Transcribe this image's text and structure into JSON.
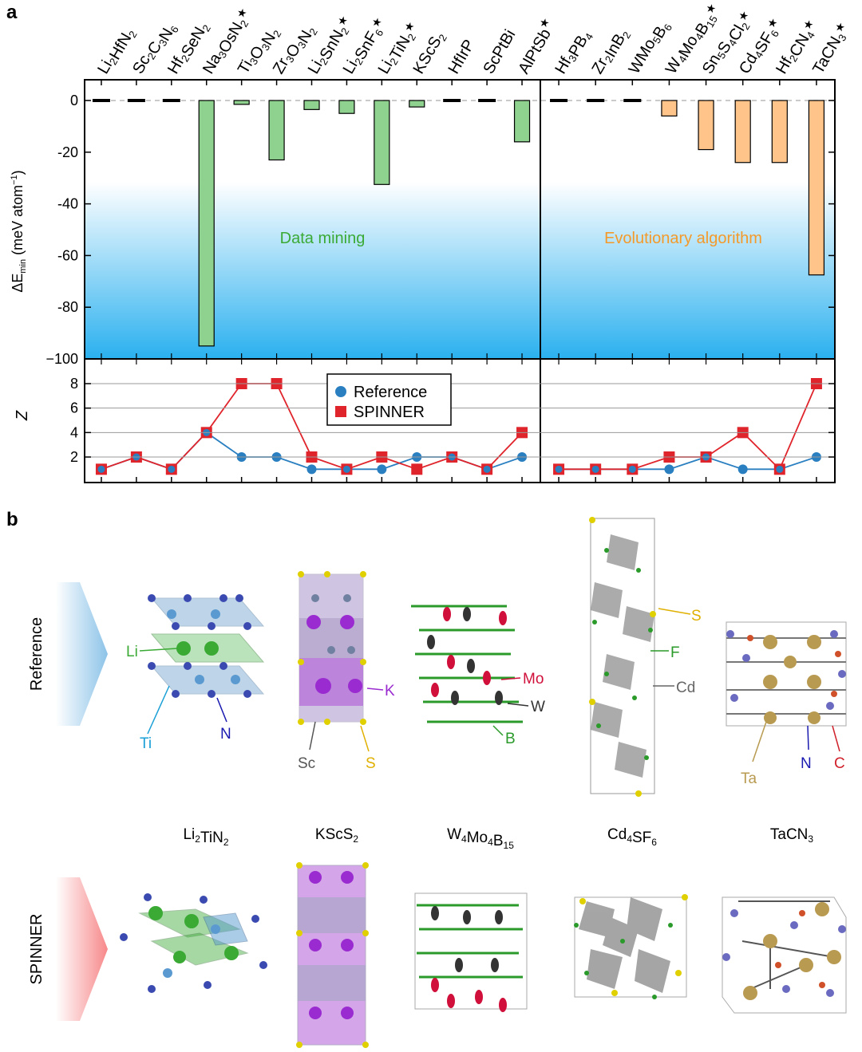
{
  "panel_a_label": "a",
  "panel_b_label": "b",
  "colors": {
    "data_mining_bar": "#8fd18f",
    "evolutionary_bar": "#ffc48a",
    "reference": "#2a7fc1",
    "spinner": "#e0242b",
    "gradient_top": "#ffffff",
    "gradient_bottom": "#2ab0ef",
    "green_text": "#3aaa35",
    "orange_text": "#f39a2b"
  },
  "chart_data": [
    {
      "type": "bar",
      "categories": [
        {
          "id": "Li2HfN2",
          "parts": [
            [
              "Li",
              0
            ],
            [
              "2",
              1
            ],
            [
              "HfN",
              0
            ],
            [
              "2",
              1
            ]
          ],
          "star": false
        },
        {
          "id": "Sc2C3N6",
          "parts": [
            [
              "Sc",
              0
            ],
            [
              "2",
              1
            ],
            [
              "C",
              0
            ],
            [
              "3",
              1
            ],
            [
              "N",
              0
            ],
            [
              "6",
              1
            ]
          ],
          "star": false
        },
        {
          "id": "Hf2SeN2",
          "parts": [
            [
              "Hf",
              0
            ],
            [
              "2",
              1
            ],
            [
              "SeN",
              0
            ],
            [
              "2",
              1
            ]
          ],
          "star": false
        },
        {
          "id": "Na3OsN2",
          "parts": [
            [
              "Na",
              0
            ],
            [
              "3",
              1
            ],
            [
              "OsN",
              0
            ],
            [
              "2",
              1
            ]
          ],
          "star": true
        },
        {
          "id": "Ti3O3N2",
          "parts": [
            [
              "Ti",
              0
            ],
            [
              "3",
              1
            ],
            [
              "O",
              0
            ],
            [
              "3",
              1
            ],
            [
              "N",
              0
            ],
            [
              "2",
              1
            ]
          ],
          "star": false
        },
        {
          "id": "Zr3O3N2",
          "parts": [
            [
              "Zr",
              0
            ],
            [
              "3",
              1
            ],
            [
              "O",
              0
            ],
            [
              "3",
              1
            ],
            [
              "N",
              0
            ],
            [
              "2",
              1
            ]
          ],
          "star": false
        },
        {
          "id": "Li2SnN2",
          "parts": [
            [
              "Li",
              0
            ],
            [
              "2",
              1
            ],
            [
              "SnN",
              0
            ],
            [
              "2",
              1
            ]
          ],
          "star": true
        },
        {
          "id": "Li2SnF6",
          "parts": [
            [
              "Li",
              0
            ],
            [
              "2",
              1
            ],
            [
              "SnF",
              0
            ],
            [
              "6",
              1
            ]
          ],
          "star": true
        },
        {
          "id": "Li2TiN2",
          "parts": [
            [
              "Li",
              0
            ],
            [
              "2",
              1
            ],
            [
              "TiN",
              0
            ],
            [
              "2",
              1
            ]
          ],
          "star": true
        },
        {
          "id": "KScS2",
          "parts": [
            [
              "KScS",
              0
            ],
            [
              "2",
              1
            ]
          ],
          "star": false
        },
        {
          "id": "HfIrP",
          "parts": [
            [
              "HfIrP",
              0
            ]
          ],
          "star": false
        },
        {
          "id": "ScPtBi",
          "parts": [
            [
              "ScPtBi",
              0
            ]
          ],
          "star": false
        },
        {
          "id": "AlPtSb",
          "parts": [
            [
              "AlPtSb",
              0
            ]
          ],
          "star": true
        },
        {
          "id": "Hf3PB4",
          "parts": [
            [
              "Hf",
              0
            ],
            [
              "3",
              1
            ],
            [
              "PB",
              0
            ],
            [
              "4",
              1
            ]
          ],
          "star": false
        },
        {
          "id": "Zr2InB2",
          "parts": [
            [
              "Zr",
              0
            ],
            [
              "2",
              1
            ],
            [
              "InB",
              0
            ],
            [
              "2",
              1
            ]
          ],
          "star": false
        },
        {
          "id": "WMo5B6",
          "parts": [
            [
              "WMo",
              0
            ],
            [
              "5",
              1
            ],
            [
              "B",
              0
            ],
            [
              "6",
              1
            ]
          ],
          "star": false
        },
        {
          "id": "W4Mo4B15",
          "parts": [
            [
              "W",
              0
            ],
            [
              "4",
              1
            ],
            [
              "Mo",
              0
            ],
            [
              "4",
              1
            ],
            [
              "B",
              0
            ],
            [
              "15",
              1
            ]
          ],
          "star": true
        },
        {
          "id": "Sn5S4Cl2",
          "parts": [
            [
              "Sn",
              0
            ],
            [
              "5",
              1
            ],
            [
              "S",
              0
            ],
            [
              "4",
              1
            ],
            [
              "Cl",
              0
            ],
            [
              "2",
              1
            ]
          ],
          "star": true
        },
        {
          "id": "Cd4SF6",
          "parts": [
            [
              "Cd",
              0
            ],
            [
              "4",
              1
            ],
            [
              "SF",
              0
            ],
            [
              "6",
              1
            ]
          ],
          "star": true
        },
        {
          "id": "Hf2CN4",
          "parts": [
            [
              "Hf",
              0
            ],
            [
              "2",
              1
            ],
            [
              "CN",
              0
            ],
            [
              "4",
              1
            ]
          ],
          "star": true
        },
        {
          "id": "TaCN3",
          "parts": [
            [
              "TaCN",
              0
            ],
            [
              "3",
              1
            ]
          ],
          "star": true
        }
      ],
      "values": [
        0,
        0,
        0,
        -95,
        -1.5,
        -23,
        -3.5,
        -5,
        -32.5,
        -2.5,
        0,
        0,
        -16,
        0,
        0,
        0,
        -6,
        -19,
        -24,
        -24,
        -67.5
      ],
      "groups": [
        {
          "name": "Data mining",
          "start": 0,
          "end": 12
        },
        {
          "name": "Evolutionary algorithm",
          "start": 13,
          "end": 20
        }
      ],
      "ylabel_main": "ΔE",
      "ylabel_sub": "min",
      "ylabel_unit": " (meV atom",
      "ylabel_exp": "−1",
      "ylabel_close": ")",
      "ylim": [
        -100,
        5
      ],
      "yticks": [
        0,
        -20,
        -40,
        -60,
        -80,
        -100
      ],
      "ytick_labels": [
        "0",
        "-20",
        "-40",
        "-60",
        "-80",
        "−100"
      ]
    },
    {
      "type": "line",
      "ylabel": "Z",
      "ylim": [
        0,
        9
      ],
      "yticks": [
        2,
        4,
        6,
        8
      ],
      "ytick_labels": [
        "2",
        "4",
        "6",
        "8"
      ],
      "series": [
        {
          "name": "Reference",
          "values": [
            1,
            2,
            1,
            4,
            2,
            2,
            1,
            1,
            1,
            2,
            2,
            1,
            2,
            1,
            1,
            1,
            1,
            2,
            1,
            1,
            2
          ]
        },
        {
          "name": "SPINNER",
          "values": [
            1,
            2,
            1,
            4,
            8,
            8,
            2,
            1,
            2,
            1,
            2,
            1,
            4,
            1,
            1,
            1,
            2,
            2,
            4,
            1,
            8
          ]
        }
      ]
    }
  ],
  "panel_b": {
    "row_labels": [
      "Reference",
      "SPINNER"
    ],
    "compounds": [
      {
        "id": "Li2TiN2",
        "parts": [
          [
            "Li",
            0
          ],
          [
            "2",
            1
          ],
          [
            "TiN",
            0
          ],
          [
            "2",
            1
          ]
        ]
      },
      {
        "id": "KScS2",
        "parts": [
          [
            "KScS",
            0
          ],
          [
            "2",
            1
          ]
        ]
      },
      {
        "id": "W4Mo4B15",
        "parts": [
          [
            "W",
            0
          ],
          [
            "4",
            1
          ],
          [
            "Mo",
            0
          ],
          [
            "4",
            1
          ],
          [
            "B",
            0
          ],
          [
            "15",
            1
          ]
        ]
      },
      {
        "id": "Cd4SF6",
        "parts": [
          [
            "Cd",
            0
          ],
          [
            "4",
            1
          ],
          [
            "SF",
            0
          ],
          [
            "6",
            1
          ]
        ]
      },
      {
        "id": "TaCN3",
        "parts": [
          [
            "TaCN",
            0
          ],
          [
            "3",
            1
          ]
        ]
      }
    ],
    "atom_labels": {
      "li": "Li",
      "ti": "Ti",
      "n1": "N",
      "k": "K",
      "sc": "Sc",
      "s1": "S",
      "mo": "Mo",
      "w": "W",
      "b": "B",
      "s2": "S",
      "f": "F",
      "cd": "Cd",
      "ta": "Ta",
      "n2": "N",
      "c": "C"
    },
    "atom_colors": {
      "li": "#3aaa35",
      "ti": "#1a9fd6",
      "n": "#1a1ab0",
      "k": "#9a2bd0",
      "sc": "#555555",
      "s": "#e0b000",
      "mo": "#d0103a",
      "w": "#333333",
      "b": "#2a9a2a",
      "f": "#2a9a2a",
      "cd": "#666666",
      "ta": "#b89a50",
      "c": "#d0202a"
    }
  }
}
